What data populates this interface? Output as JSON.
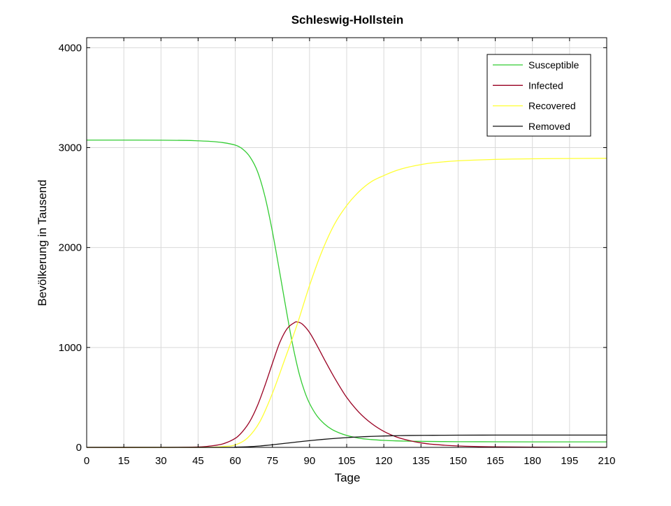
{
  "chart_data": {
    "type": "line",
    "title": "Schleswig-Hollstein",
    "xlabel": "Tage",
    "ylabel": "Bevölkerung in Tausend",
    "xlim": [
      0,
      210
    ],
    "ylim": [
      0,
      4100
    ],
    "xticks": [
      0,
      15,
      30,
      45,
      60,
      75,
      90,
      105,
      120,
      135,
      150,
      165,
      180,
      195,
      210
    ],
    "yticks": [
      0,
      1000,
      2000,
      3000,
      4000
    ],
    "grid": true,
    "legend_position": "top-right",
    "series": [
      {
        "name": "Susceptible",
        "color": "#33cc33",
        "x": [
          0,
          15,
          30,
          40,
          45,
          50,
          55,
          60,
          63,
          66,
          69,
          72,
          75,
          78,
          80,
          82,
          84,
          86,
          88,
          90,
          93,
          96,
          99,
          102,
          105,
          110,
          115,
          120,
          125,
          130,
          140,
          150,
          165,
          180,
          195,
          210
        ],
        "y": [
          3075,
          3075,
          3074,
          3072,
          3068,
          3062,
          3050,
          3025,
          2985,
          2905,
          2760,
          2510,
          2160,
          1745,
          1460,
          1180,
          930,
          720,
          560,
          440,
          315,
          235,
          180,
          145,
          120,
          92,
          78,
          70,
          65,
          62,
          59,
          57,
          56,
          55,
          55,
          55
        ]
      },
      {
        "name": "Infected",
        "color": "#990022",
        "x": [
          0,
          30,
          45,
          50,
          55,
          60,
          63,
          66,
          69,
          72,
          75,
          78,
          81,
          84,
          85,
          87,
          90,
          93,
          96,
          100,
          105,
          110,
          115,
          120,
          125,
          130,
          135,
          140,
          150,
          165,
          180,
          195,
          210
        ],
        "y": [
          0,
          0,
          4,
          14,
          35,
          90,
          160,
          265,
          420,
          620,
          840,
          1050,
          1190,
          1250,
          1255,
          1235,
          1150,
          1020,
          880,
          700,
          500,
          350,
          240,
          160,
          105,
          70,
          45,
          30,
          14,
          5,
          2,
          1,
          0
        ]
      },
      {
        "name": "Recovered",
        "color": "#ffff33",
        "x": [
          0,
          45,
          55,
          60,
          65,
          70,
          75,
          80,
          85,
          90,
          95,
          100,
          105,
          110,
          115,
          120,
          125,
          130,
          135,
          140,
          150,
          165,
          180,
          195,
          210
        ],
        "y": [
          0,
          0,
          8,
          25,
          95,
          260,
          540,
          880,
          1230,
          1620,
          1960,
          2230,
          2420,
          2560,
          2660,
          2720,
          2770,
          2805,
          2830,
          2848,
          2868,
          2882,
          2888,
          2891,
          2893
        ]
      },
      {
        "name": "Removed",
        "color": "#111111",
        "x": [
          0,
          55,
          60,
          65,
          70,
          75,
          80,
          85,
          90,
          95,
          100,
          105,
          110,
          115,
          120,
          125,
          130,
          140,
          150,
          165,
          180,
          195,
          210
        ],
        "y": [
          0,
          0,
          2,
          6,
          14,
          26,
          40,
          54,
          67,
          79,
          89,
          98,
          105,
          110,
          114,
          117,
          119,
          121,
          122,
          123,
          123,
          123,
          123
        ]
      }
    ]
  }
}
